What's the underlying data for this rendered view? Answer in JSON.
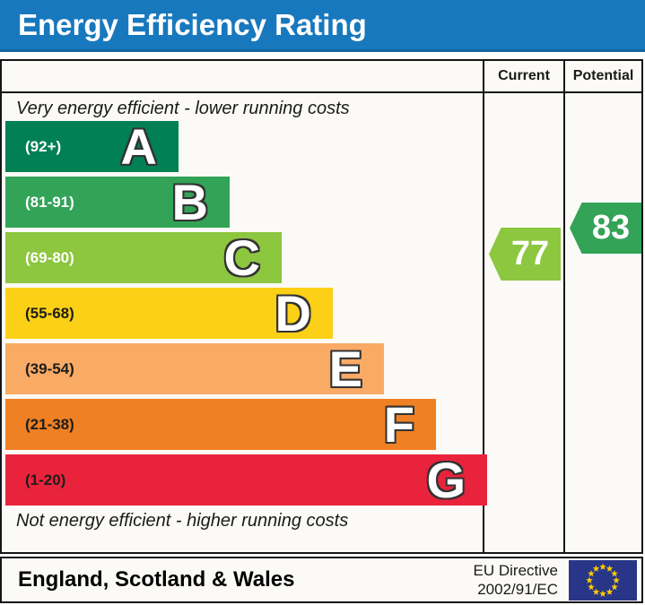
{
  "title": "Energy Efficiency Rating",
  "title_bg": "#1878bd",
  "columns": {
    "current": "Current",
    "potential": "Potential"
  },
  "top_note": "Very energy efficient - lower running costs",
  "bottom_note": "Not energy efficient - higher running costs",
  "bands": [
    {
      "letter": "A",
      "range": "(92+)",
      "color": "#008054",
      "label_color": "#ffffff"
    },
    {
      "letter": "B",
      "range": "(81-91)",
      "color": "#33a357",
      "label_color": "#ffffff"
    },
    {
      "letter": "C",
      "range": "(69-80)",
      "color": "#8dc63f",
      "label_color": "#ffffff"
    },
    {
      "letter": "D",
      "range": "(55-68)",
      "color": "#fcd016",
      "label_color": "#1d1d1b"
    },
    {
      "letter": "E",
      "range": "(39-54)",
      "color": "#f9aa65",
      "label_color": "#1d1d1b"
    },
    {
      "letter": "F",
      "range": "(21-38)",
      "color": "#ef8023",
      "label_color": "#1d1d1b"
    },
    {
      "letter": "G",
      "range": "(1-20)",
      "color": "#e9233c",
      "label_color": "#1d1d1b"
    }
  ],
  "ratings": {
    "current": {
      "value": "77",
      "color": "#8dc63f"
    },
    "potential": {
      "value": "83",
      "color": "#33a357"
    }
  },
  "footer": {
    "region": "England, Scotland & Wales",
    "directive_line1": "EU Directive",
    "directive_line2": "2002/91/EC",
    "flag_colors": {
      "field": "#293688",
      "stars": "#ffcc00"
    }
  },
  "chart_data": {
    "type": "bar",
    "title": "Energy Efficiency Rating",
    "categories": [
      "A",
      "B",
      "C",
      "D",
      "E",
      "F",
      "G"
    ],
    "ranges": [
      "92+",
      "81-91",
      "69-80",
      "55-68",
      "39-54",
      "21-38",
      "1-20"
    ],
    "colors": [
      "#008054",
      "#33a357",
      "#8dc63f",
      "#fcd016",
      "#f9aa65",
      "#ef8023",
      "#e9233c"
    ],
    "series": [
      {
        "name": "Current",
        "value": 77,
        "band": "C",
        "color": "#8dc63f"
      },
      {
        "name": "Potential",
        "value": 83,
        "band": "B",
        "color": "#33a357"
      }
    ],
    "annotations": [
      "Very energy efficient - lower running costs",
      "Not energy efficient - higher running costs"
    ],
    "legend_position": "top-right-columns",
    "region": "England, Scotland & Wales",
    "directive": "EU Directive 2002/91/EC"
  }
}
